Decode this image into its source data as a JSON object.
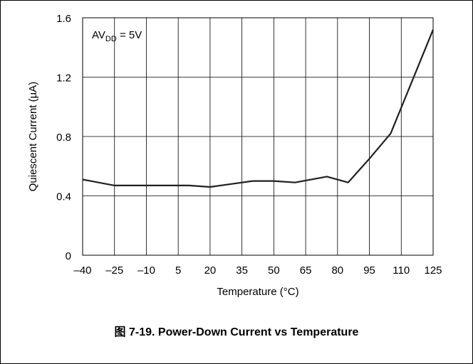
{
  "caption": "图 7-19. Power-Down Current vs Temperature",
  "chart_data": {
    "type": "line",
    "title": "",
    "xlabel": "Temperature (°C)",
    "ylabel": "Quiescent Current (µA)",
    "xlim": [
      -40,
      125
    ],
    "ylim": [
      0,
      1.6
    ],
    "x_ticks": [
      -40,
      -25,
      -10,
      5,
      20,
      35,
      50,
      65,
      80,
      95,
      110,
      125
    ],
    "x_tick_labels": [
      "–40",
      "–25",
      "–10",
      "5",
      "20",
      "35",
      "50",
      "65",
      "80",
      "95",
      "110",
      "125"
    ],
    "y_ticks": [
      0,
      0.4,
      0.8,
      1.2,
      1.6
    ],
    "y_tick_labels": [
      "0",
      "0.4",
      "0.8",
      "1.2",
      "1.6"
    ],
    "grid": true,
    "annotation": {
      "main": "AV",
      "sub": "DD",
      "rest": " = 5V"
    },
    "series": [
      {
        "x": [
          -40,
          -25,
          -10,
          0,
          10,
          20,
          30,
          40,
          50,
          60,
          75,
          85,
          95,
          105,
          115,
          125
        ],
        "values": [
          0.51,
          0.47,
          0.47,
          0.47,
          0.47,
          0.46,
          0.48,
          0.5,
          0.5,
          0.49,
          0.53,
          0.49,
          0.65,
          0.82,
          1.17,
          1.52
        ]
      }
    ],
    "line_color": "#231f20"
  }
}
